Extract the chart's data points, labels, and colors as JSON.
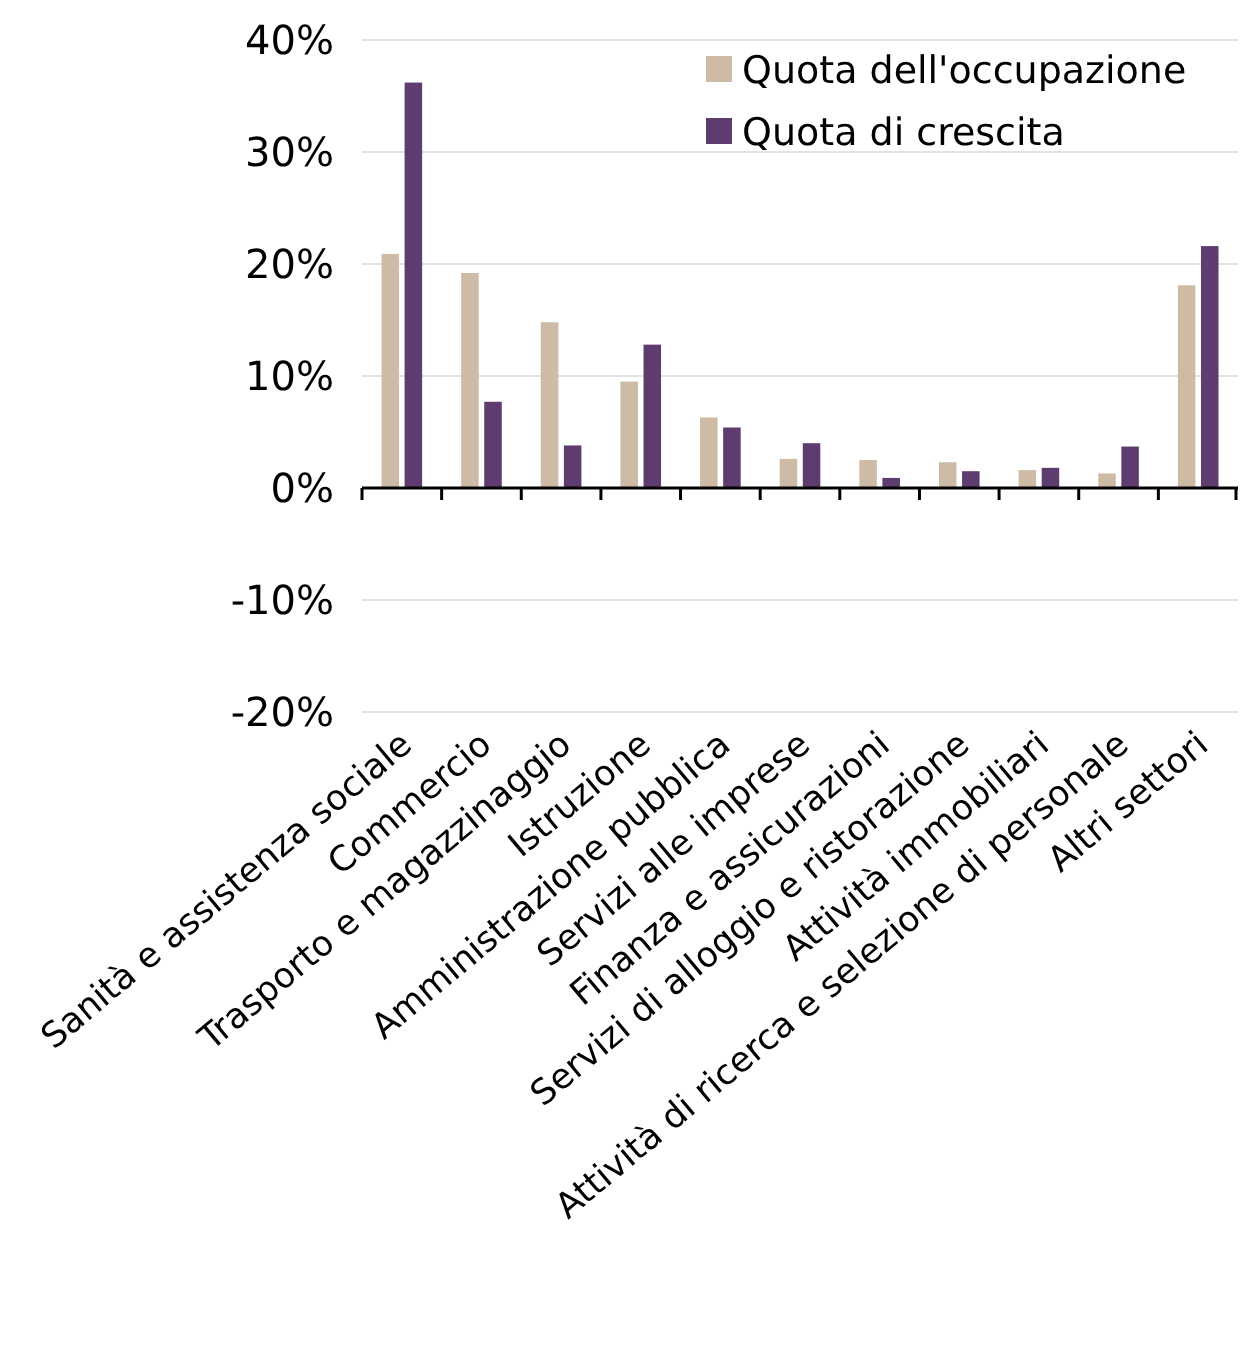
{
  "chart_data": {
    "type": "bar",
    "categories": [
      "Sanità e assistenza sociale",
      "Commercio",
      "Trasporto e magazzinaggio",
      "Istruzione",
      "Amministrazione pubblica",
      "Servizi alle imprese",
      "Finanza e assicurazioni",
      "Servizi di alloggio e ristorazione",
      "Attività immobiliari",
      "Attività di ricerca e selezione di personale",
      "Altri settori"
    ],
    "series": [
      {
        "name": "Quota dell'occupazione",
        "color": "#cdbba5",
        "values": [
          20.9,
          19.2,
          14.8,
          9.5,
          6.3,
          2.6,
          2.5,
          2.3,
          1.6,
          1.3,
          18.1
        ]
      },
      {
        "name": "Quota di crescita",
        "color": "#5e3c70",
        "values": [
          36.2,
          7.7,
          3.8,
          12.8,
          5.4,
          4.0,
          0.9,
          1.5,
          1.8,
          3.7,
          21.6
        ]
      }
    ],
    "ylim": [
      -20,
      40
    ],
    "yticks": [
      {
        "value": -20,
        "label": "-20%"
      },
      {
        "value": -10,
        "label": "-10%"
      },
      {
        "value": 0,
        "label": "0%"
      },
      {
        "value": 10,
        "label": "10%"
      },
      {
        "value": 20,
        "label": "20%"
      },
      {
        "value": 30,
        "label": "30%"
      },
      {
        "value": 40,
        "label": "40%"
      }
    ],
    "grid": "y",
    "legend": "top right"
  }
}
